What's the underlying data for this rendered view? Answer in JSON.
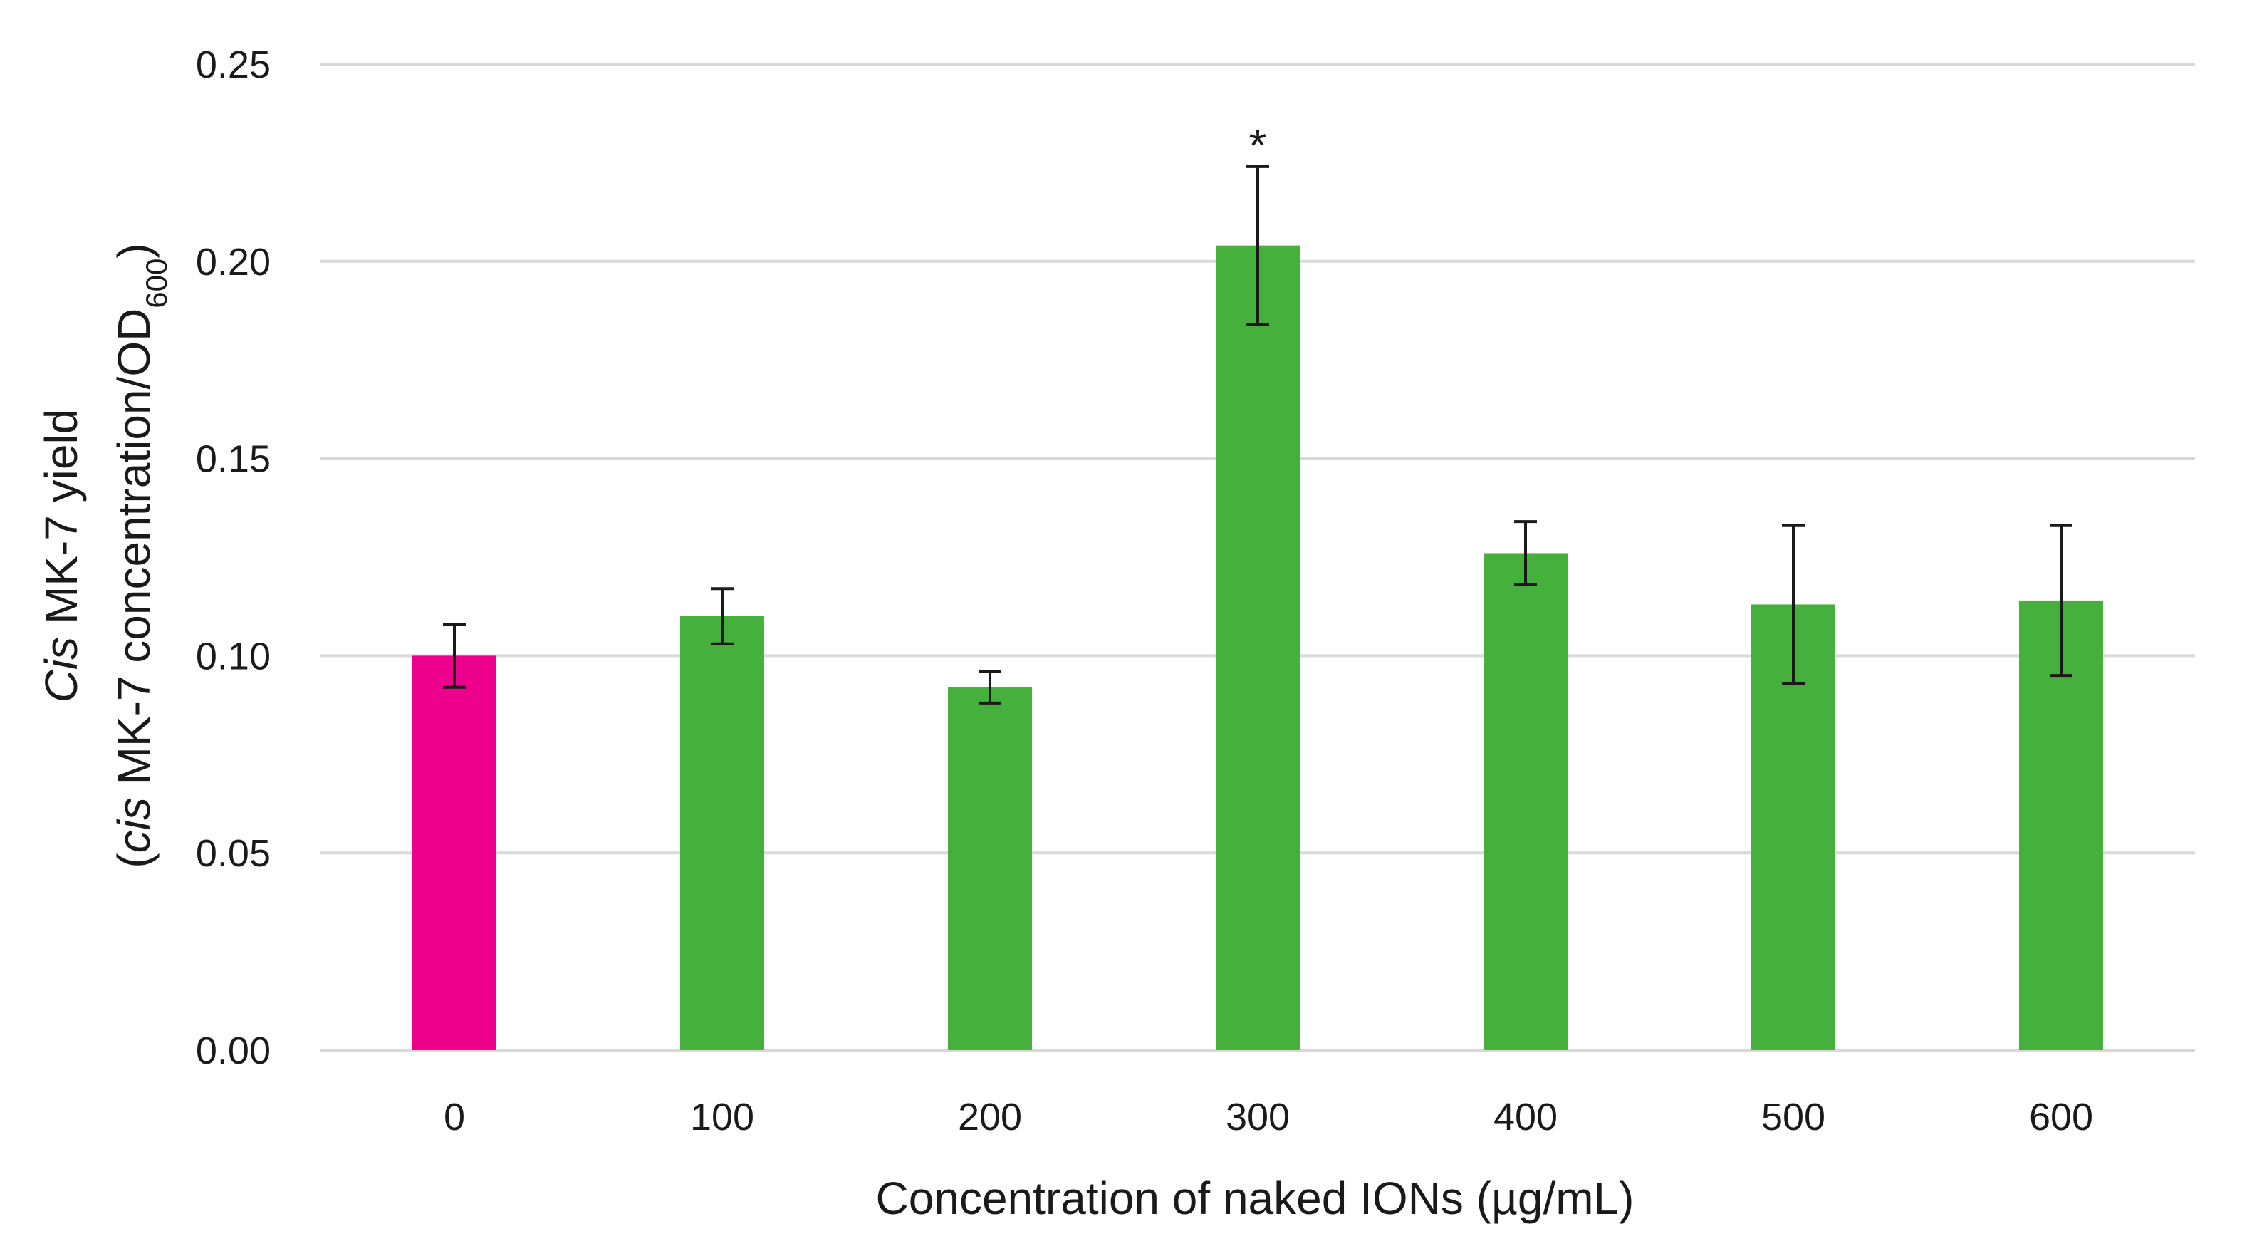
{
  "chart_data": {
    "type": "bar",
    "title": "",
    "xlabel": "Concentration of naked IONs (µg/mL)",
    "ylabel": {
      "line1_italic": "Cis",
      "line1_rest": " MK-7 yield",
      "line2_open": "(",
      "line2_italic": "cis",
      "line2_rest": " MK-7 concentration/OD",
      "line2_sub": "600",
      "line2_close": ")"
    },
    "categories": [
      "0",
      "100",
      "200",
      "300",
      "400",
      "500",
      "600"
    ],
    "values": [
      0.1,
      0.11,
      0.092,
      0.204,
      0.126,
      0.113,
      0.114
    ],
    "errors": [
      0.008,
      0.007,
      0.004,
      0.02,
      0.008,
      0.02,
      0.019
    ],
    "colors": [
      "#ec008c",
      "#45b03c",
      "#45b03c",
      "#45b03c",
      "#45b03c",
      "#45b03c",
      "#45b03c"
    ],
    "significance": [
      "",
      "",
      "",
      "*",
      "",
      "",
      ""
    ],
    "yticks": [
      "0.00",
      "0.05",
      "0.10",
      "0.15",
      "0.20",
      "0.25"
    ],
    "ylim": [
      0,
      0.25
    ],
    "grid": true,
    "legend": "none",
    "gridline_color": "#d9d9d9",
    "error_bar_color": "#1a1a1a"
  }
}
